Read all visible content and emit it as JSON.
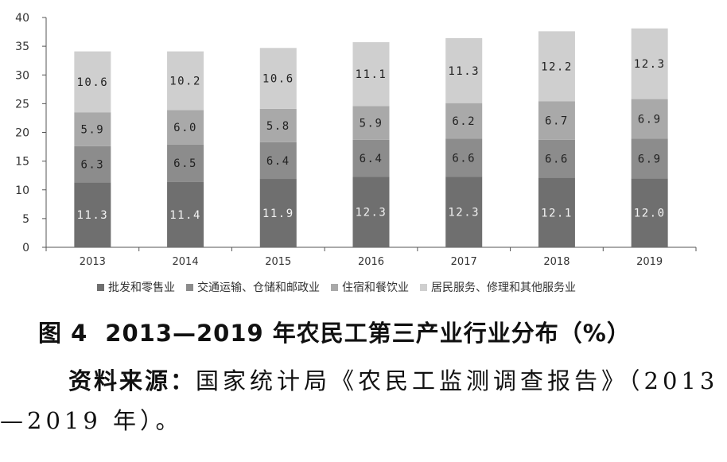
{
  "chart_data": {
    "type": "bar",
    "stacked": true,
    "categories": [
      "2013",
      "2014",
      "2015",
      "2016",
      "2017",
      "2018",
      "2019"
    ],
    "series": [
      {
        "name": "批发和零售业",
        "color": "#6f6f6f",
        "values": [
          11.3,
          11.4,
          11.9,
          12.3,
          12.3,
          12.1,
          12.0
        ],
        "labels": [
          "11.3",
          "11.4",
          "11.9",
          "12.3",
          "12.3",
          "12.1",
          "12.0"
        ]
      },
      {
        "name": "交通运输、仓储和邮政业",
        "color": "#8c8c8c",
        "values": [
          6.3,
          6.5,
          6.4,
          6.4,
          6.6,
          6.6,
          6.9
        ],
        "labels": [
          "6.3",
          "6.5",
          "6.4",
          "6.4",
          "6.6",
          "6.6",
          "6.9"
        ]
      },
      {
        "name": "住宿和餐饮业",
        "color": "#a9a9a9",
        "values": [
          5.9,
          6.0,
          5.8,
          5.9,
          6.2,
          6.7,
          6.9
        ],
        "labels": [
          "5.9",
          "6.0",
          "5.8",
          "5.9",
          "6.2",
          "6.7",
          "6.9"
        ]
      },
      {
        "name": "居民服务、修理和其他服务业",
        "color": "#cfcfcf",
        "values": [
          10.6,
          10.2,
          10.6,
          11.1,
          11.3,
          12.2,
          12.3
        ],
        "labels": [
          "10.6",
          "10.2",
          "10.6",
          "11.1",
          "11.3",
          "12.2",
          "12.3"
        ]
      }
    ],
    "ylim": [
      0,
      40
    ],
    "yticks": [
      "0",
      "5",
      "10",
      "15",
      "20",
      "25",
      "30",
      "35",
      "40"
    ],
    "legend_position": "bottom",
    "grid": false
  },
  "caption": {
    "figure_no": "图 4",
    "title": "2013—2019 年农民工第三产业行业分布（%）"
  },
  "source": {
    "label": "资料来源：",
    "text": "国家统计局《农民工监测调查报告》（2013—2019 年）。"
  }
}
